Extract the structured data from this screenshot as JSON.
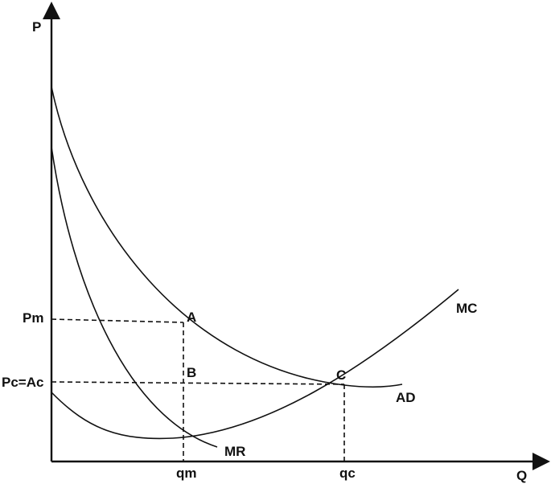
{
  "axes": {
    "y_label": "P",
    "x_label": "Q"
  },
  "price_labels": {
    "monopoly": "Pm",
    "competitive": "Pc=Ac"
  },
  "quantity_labels": {
    "monopoly": "qm",
    "competitive": "qc"
  },
  "points": {
    "a": "A",
    "b": "B",
    "c": "C"
  },
  "curves": {
    "marginal_cost": "MC",
    "average_demand": "AD",
    "marginal_revenue": "MR"
  }
}
